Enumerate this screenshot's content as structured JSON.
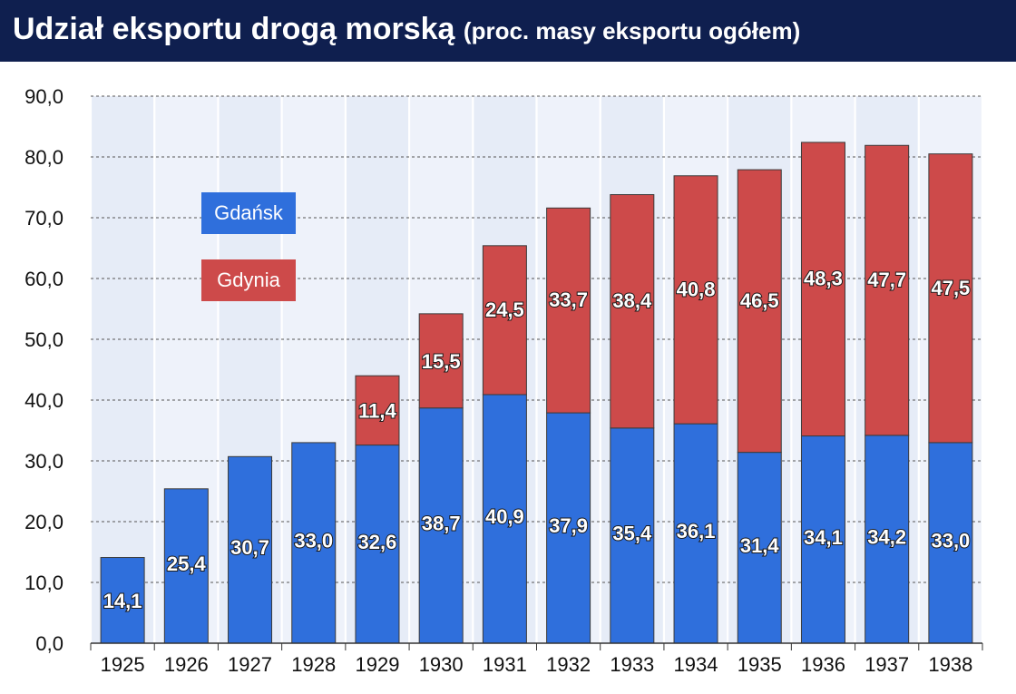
{
  "header": {
    "title": "Udział eksportu drogą morską",
    "subtitle": "(proc. masy eksportu ogółem)"
  },
  "colors": {
    "title_bg": "#0f1f4f",
    "gdansk": "#2f6fdc",
    "gdynia": "#cd4a4a",
    "label_text": "#ffffff"
  },
  "chart_data": {
    "type": "bar",
    "stacked": true,
    "title": "Udział eksportu drogą morską (proc. masy eksportu ogółem)",
    "xlabel": "",
    "ylabel": "",
    "ylim": [
      0,
      90
    ],
    "yticks": [
      "0,0",
      "10,0",
      "20,0",
      "30,0",
      "40,0",
      "50,0",
      "60,0",
      "70,0",
      "80,0",
      "90,0"
    ],
    "grid": true,
    "legend_position": "upper-left",
    "categories": [
      "1925",
      "1926",
      "1927",
      "1928",
      "1929",
      "1930",
      "1931",
      "1932",
      "1933",
      "1934",
      "1935",
      "1936",
      "1937",
      "1938"
    ],
    "series": [
      {
        "name": "Gdańsk",
        "values": [
          14.1,
          25.4,
          30.7,
          33.0,
          32.6,
          38.7,
          40.9,
          37.9,
          35.4,
          36.1,
          31.4,
          34.1,
          34.2,
          33.0
        ],
        "labels": [
          "14,1",
          "25,4",
          "30,7",
          "33,0",
          "32,6",
          "38,7",
          "40,9",
          "37,9",
          "35,4",
          "36,1",
          "31,4",
          "34,1",
          "34,2",
          "33,0"
        ]
      },
      {
        "name": "Gdynia",
        "values": [
          null,
          null,
          null,
          null,
          11.4,
          15.5,
          24.5,
          33.7,
          38.4,
          40.8,
          46.5,
          48.3,
          47.7,
          47.5
        ],
        "labels": [
          "",
          "",
          "",
          "",
          "11,4",
          "15,5",
          "24,5",
          "33,7",
          "38,4",
          "40,8",
          "46,5",
          "48,3",
          "47,7",
          "47,5"
        ]
      }
    ]
  }
}
